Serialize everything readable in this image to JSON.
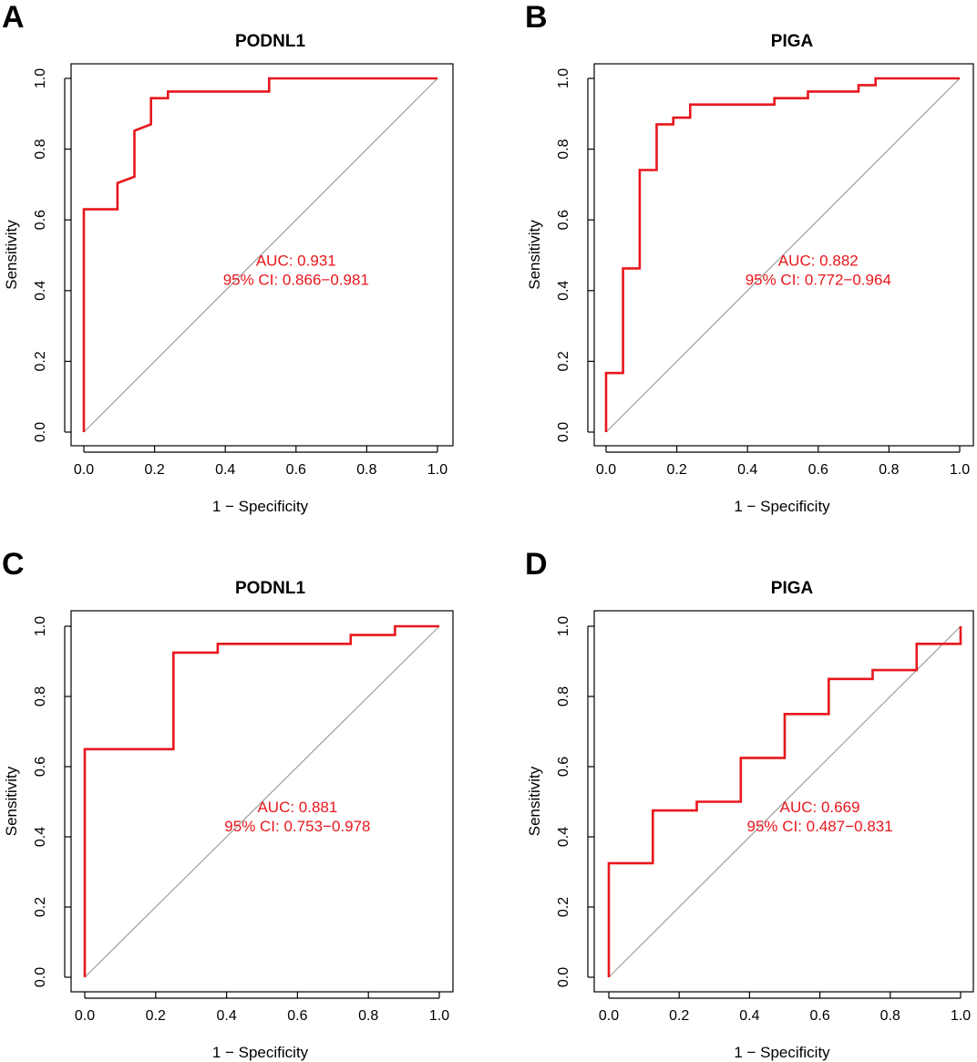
{
  "chart_data": [
    {
      "type": "line",
      "panel": "A",
      "title": "PODNL1",
      "xlabel": "1 − Specificity",
      "ylabel": "Sensitivity",
      "xlim": [
        0,
        1
      ],
      "ylim": [
        0,
        1
      ],
      "x_ticks": [
        "0.0",
        "0.2",
        "0.4",
        "0.6",
        "0.8",
        "1.0"
      ],
      "y_ticks": [
        "0.0",
        "0.2",
        "0.4",
        "0.6",
        "0.8",
        "1.0"
      ],
      "auc_text": "AUC: 0.931",
      "ci_text": "95% CI: 0.866−0.981",
      "reference_line": "diagonal",
      "series": [
        {
          "name": "ROC",
          "color": "#e8171c",
          "x": [
            0,
            0,
            0.095,
            0.095,
            0.143,
            0.143,
            0.19,
            0.19,
            0.238,
            0.238,
            0.524,
            0.524,
            1.0
          ],
          "y": [
            0,
            0.63,
            0.63,
            0.704,
            0.722,
            0.852,
            0.87,
            0.944,
            0.944,
            0.963,
            0.963,
            1.0,
            1.0
          ]
        }
      ]
    },
    {
      "type": "line",
      "panel": "B",
      "title": "PIGA",
      "xlabel": "1 − Specificity",
      "ylabel": "Sensitivity",
      "xlim": [
        0,
        1
      ],
      "ylim": [
        0,
        1
      ],
      "x_ticks": [
        "0.0",
        "0.2",
        "0.4",
        "0.6",
        "0.8",
        "1.0"
      ],
      "y_ticks": [
        "0.0",
        "0.2",
        "0.4",
        "0.6",
        "0.8",
        "1.0"
      ],
      "auc_text": "AUC: 0.882",
      "ci_text": "95% CI: 0.772−0.964",
      "reference_line": "diagonal",
      "series": [
        {
          "name": "ROC",
          "color": "#e8171c",
          "x": [
            0,
            0,
            0.048,
            0.048,
            0.095,
            0.095,
            0.143,
            0.143,
            0.19,
            0.19,
            0.238,
            0.238,
            0.476,
            0.476,
            0.571,
            0.571,
            0.714,
            0.714,
            0.762,
            0.762,
            1.0
          ],
          "y": [
            0,
            0.167,
            0.167,
            0.463,
            0.463,
            0.741,
            0.741,
            0.87,
            0.87,
            0.889,
            0.889,
            0.926,
            0.926,
            0.944,
            0.944,
            0.963,
            0.963,
            0.981,
            0.981,
            1.0,
            1.0
          ]
        }
      ]
    },
    {
      "type": "line",
      "panel": "C",
      "title": "PODNL1",
      "xlabel": "1 − Specificity",
      "ylabel": "Sensitivity",
      "xlim": [
        0,
        1
      ],
      "ylim": [
        0,
        1
      ],
      "x_ticks": [
        "0.0",
        "0.2",
        "0.4",
        "0.6",
        "0.8",
        "1.0"
      ],
      "y_ticks": [
        "0.0",
        "0.2",
        "0.4",
        "0.6",
        "0.8",
        "1.0"
      ],
      "auc_text": "AUC: 0.881",
      "ci_text": "95% CI: 0.753−0.978",
      "reference_line": "diagonal",
      "series": [
        {
          "name": "ROC",
          "color": "#e8171c",
          "x": [
            0,
            0,
            0.25,
            0.25,
            0.375,
            0.375,
            0.75,
            0.75,
            0.875,
            0.875,
            1.0
          ],
          "y": [
            0,
            0.65,
            0.65,
            0.925,
            0.925,
            0.95,
            0.95,
            0.975,
            0.975,
            1.0,
            1.0
          ]
        }
      ]
    },
    {
      "type": "line",
      "panel": "D",
      "title": "PIGA",
      "xlabel": "1 − Specificity",
      "ylabel": "Sensitivity",
      "xlim": [
        0,
        1
      ],
      "ylim": [
        0,
        1
      ],
      "x_ticks": [
        "0.0",
        "0.2",
        "0.4",
        "0.6",
        "0.8",
        "1.0"
      ],
      "y_ticks": [
        "0.0",
        "0.2",
        "0.4",
        "0.6",
        "0.8",
        "1.0"
      ],
      "auc_text": "AUC: 0.669",
      "ci_text": "95% CI: 0.487−0.831",
      "reference_line": "diagonal",
      "series": [
        {
          "name": "ROC",
          "color": "#e8171c",
          "x": [
            0,
            0,
            0.125,
            0.125,
            0.25,
            0.25,
            0.375,
            0.375,
            0.5,
            0.5,
            0.625,
            0.625,
            0.75,
            0.75,
            0.875,
            0.875,
            1.0,
            1.0
          ],
          "y": [
            0,
            0.325,
            0.325,
            0.475,
            0.475,
            0.5,
            0.5,
            0.625,
            0.625,
            0.75,
            0.75,
            0.85,
            0.85,
            0.875,
            0.875,
            0.95,
            0.95,
            1.0
          ]
        }
      ]
    }
  ]
}
